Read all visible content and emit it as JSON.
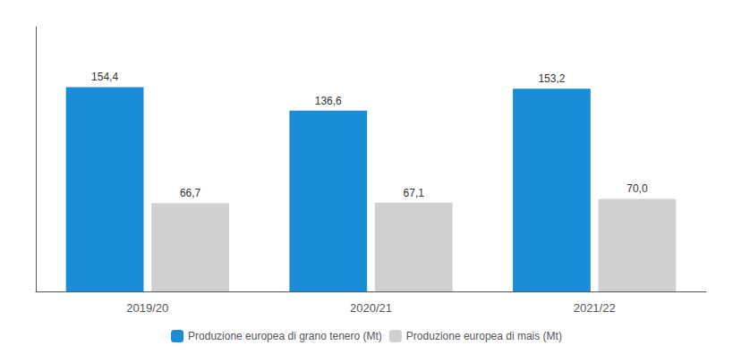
{
  "chart_data": {
    "type": "bar",
    "categories": [
      "2019/20",
      "2020/21",
      "2021/22"
    ],
    "series": [
      {
        "name": "Produzione europea di grano tenero (Mt)",
        "color": "#1a8cd8",
        "values": [
          154.4,
          136.6,
          153.2
        ],
        "value_labels": [
          "154,4",
          "136,6",
          "153,2"
        ]
      },
      {
        "name": "Produzione europea di mais (Mt)",
        "color": "#d0d0d0",
        "values": [
          66.7,
          67.1,
          70.0
        ],
        "value_labels": [
          "66,7",
          "67,1",
          "70,0"
        ]
      }
    ],
    "ylim": [
      0,
      200
    ],
    "yticks": [],
    "grid": false,
    "legend": "bottom",
    "data_labels": true,
    "tick_labels": "x"
  }
}
